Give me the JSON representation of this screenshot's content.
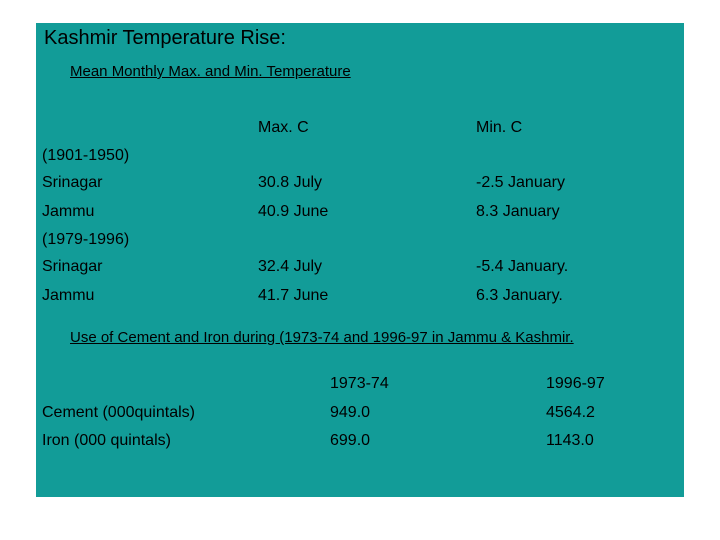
{
  "title": "Kashmir Temperature Rise:",
  "subtitle": "Mean Monthly Max. and Min. Temperature",
  "temperature_table": {
    "headers": [
      "Max. C",
      "Min. C"
    ],
    "periods": [
      {
        "label": "(1901-1950)",
        "rows": [
          {
            "place": "Srinagar",
            "max": "30.8 July",
            "min": "-2.5 January"
          },
          {
            "place": "Jammu",
            "max": "40.9 June",
            "min": "8.3 January"
          }
        ]
      },
      {
        "label": "(1979-1996)",
        "rows": [
          {
            "place": "Srinagar",
            "max": "32.4 July",
            "min": "-5.4 January."
          },
          {
            "place": "Jammu",
            "max": "41.7 June",
            "min": "6.3 January."
          }
        ]
      }
    ]
  },
  "usage_heading": "Use of Cement and Iron during (1973-74 and 1996-97 in Jammu & Kashmir.",
  "usage_table": {
    "headers": [
      "1973-74",
      "1996-97"
    ],
    "rows": [
      {
        "item": "Cement (000quintals)",
        "y1973": "949.0",
        "y1996": "4564.2"
      },
      {
        "item": "Iron (000 quintals)",
        "y1973": "699.0",
        "y1996": "1143.0"
      }
    ]
  }
}
